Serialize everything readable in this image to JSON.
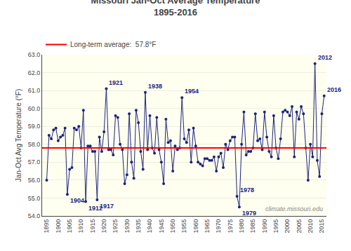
{
  "chart_data": {
    "type": "line",
    "title": "Missouri Jan-Oct Average Temperature",
    "subtitle": "1895-2016",
    "ylabel": "Jan-Oct Avg Temperature (°F)",
    "x": [
      1895,
      1896,
      1897,
      1898,
      1899,
      1900,
      1901,
      1902,
      1903,
      1904,
      1905,
      1906,
      1907,
      1908,
      1909,
      1910,
      1911,
      1912,
      1913,
      1914,
      1915,
      1916,
      1917,
      1918,
      1919,
      1920,
      1921,
      1922,
      1923,
      1924,
      1925,
      1926,
      1927,
      1928,
      1929,
      1930,
      1931,
      1932,
      1933,
      1934,
      1935,
      1936,
      1937,
      1938,
      1939,
      1940,
      1941,
      1942,
      1943,
      1944,
      1945,
      1946,
      1947,
      1948,
      1949,
      1950,
      1951,
      1952,
      1953,
      1954,
      1955,
      1956,
      1957,
      1958,
      1959,
      1960,
      1961,
      1962,
      1963,
      1964,
      1965,
      1966,
      1967,
      1968,
      1969,
      1970,
      1971,
      1972,
      1973,
      1974,
      1975,
      1976,
      1977,
      1978,
      1979,
      1980,
      1981,
      1982,
      1983,
      1984,
      1985,
      1986,
      1987,
      1988,
      1989,
      1990,
      1991,
      1992,
      1993,
      1994,
      1995,
      1996,
      1997,
      1998,
      1999,
      2000,
      2001,
      2002,
      2003,
      2004,
      2005,
      2006,
      2007,
      2008,
      2009,
      2010,
      2011,
      2012,
      2013,
      2014,
      2015,
      2016
    ],
    "series": [
      {
        "color": "#1a237e",
        "marker": "circle",
        "values": [
          56.0,
          58.5,
          58.3,
          58.8,
          58.9,
          58.2,
          58.4,
          58.5,
          58.9,
          55.2,
          56.6,
          56.7,
          58.9,
          58.8,
          59.0,
          57.8,
          59.9,
          54.8,
          57.9,
          57.9,
          57.6,
          57.6,
          54.9,
          58.4,
          57.6,
          58.7,
          61.1,
          57.7,
          57.7,
          57.4,
          59.6,
          59.5,
          58.0,
          57.7,
          55.8,
          56.3,
          59.7,
          57.0,
          56.1,
          59.9,
          59.2,
          57.6,
          56.6,
          60.9,
          57.7,
          59.6,
          57.8,
          57.5,
          59.5,
          57.7,
          57.0,
          55.8,
          59.4,
          58.1,
          58.2,
          56.5,
          57.9,
          57.7,
          57.8,
          60.6,
          58.3,
          58.1,
          58.8,
          57.0,
          58.9,
          57.9,
          57.0,
          56.9,
          56.8,
          57.2,
          57.2,
          57.1,
          57.1,
          57.3,
          56.5,
          57.3,
          57.5,
          56.7,
          58.0,
          57.7,
          58.2,
          58.4,
          58.4,
          55.1,
          54.5,
          58.0,
          59.8,
          57.4,
          57.6,
          57.6,
          57.8,
          59.7,
          58.2,
          58.3,
          57.7,
          59.8,
          58.4,
          57.6,
          57.3,
          59.6,
          57.8,
          57.2,
          58.3,
          59.8,
          59.9,
          59.8,
          59.6,
          60.1,
          57.3,
          59.8,
          59.4,
          60.1,
          59.7,
          57.8,
          56.0,
          58.0,
          57.3,
          62.5,
          57.1,
          56.2,
          59.7,
          60.7
        ]
      }
    ],
    "reference_line": {
      "name": "Long-term average:  57.8°F",
      "value": 57.8,
      "color": "red"
    },
    "annotations": [
      {
        "text": "1904",
        "x": 1904,
        "y": 55.2
      },
      {
        "text": "1912",
        "x": 1912,
        "y": 54.8
      },
      {
        "text": "1917",
        "x": 1917,
        "y": 54.9
      },
      {
        "text": "1921",
        "x": 1921,
        "y": 61.1
      },
      {
        "text": "1938",
        "x": 1938,
        "y": 60.9
      },
      {
        "text": "1954",
        "x": 1954,
        "y": 60.6
      },
      {
        "text": "1978",
        "x": 1978,
        "y": 55.1
      },
      {
        "text": "1979",
        "x": 1979,
        "y": 54.5
      },
      {
        "text": "2012",
        "x": 2012,
        "y": 62.5
      },
      {
        "text": "2016",
        "x": 2016,
        "y": 60.7
      }
    ],
    "watermark": "climate.missouri.edu",
    "xlim": [
      1893,
      2017
    ],
    "xticks": [
      1895,
      1900,
      1905,
      1910,
      1915,
      1920,
      1925,
      1930,
      1935,
      1940,
      1945,
      1950,
      1955,
      1960,
      1965,
      1970,
      1975,
      1980,
      1985,
      1990,
      1995,
      2000,
      2005,
      2010,
      2015
    ],
    "ylim": [
      54.0,
      63.0
    ],
    "yticks": [
      {
        "value": 54,
        "label": "54.0"
      },
      {
        "value": 55,
        "label": "55.0"
      },
      {
        "value": 56,
        "label": "56.0"
      },
      {
        "value": 57,
        "label": "57.0"
      },
      {
        "value": 58,
        "label": "58.0"
      },
      {
        "value": 59,
        "label": "59.0"
      },
      {
        "value": 60,
        "label": "60.0"
      },
      {
        "value": 61,
        "label": "61.0"
      },
      {
        "value": 62,
        "label": "62.0"
      },
      {
        "value": 63,
        "label": "63.0"
      }
    ],
    "grid": true,
    "legend": "top left"
  }
}
